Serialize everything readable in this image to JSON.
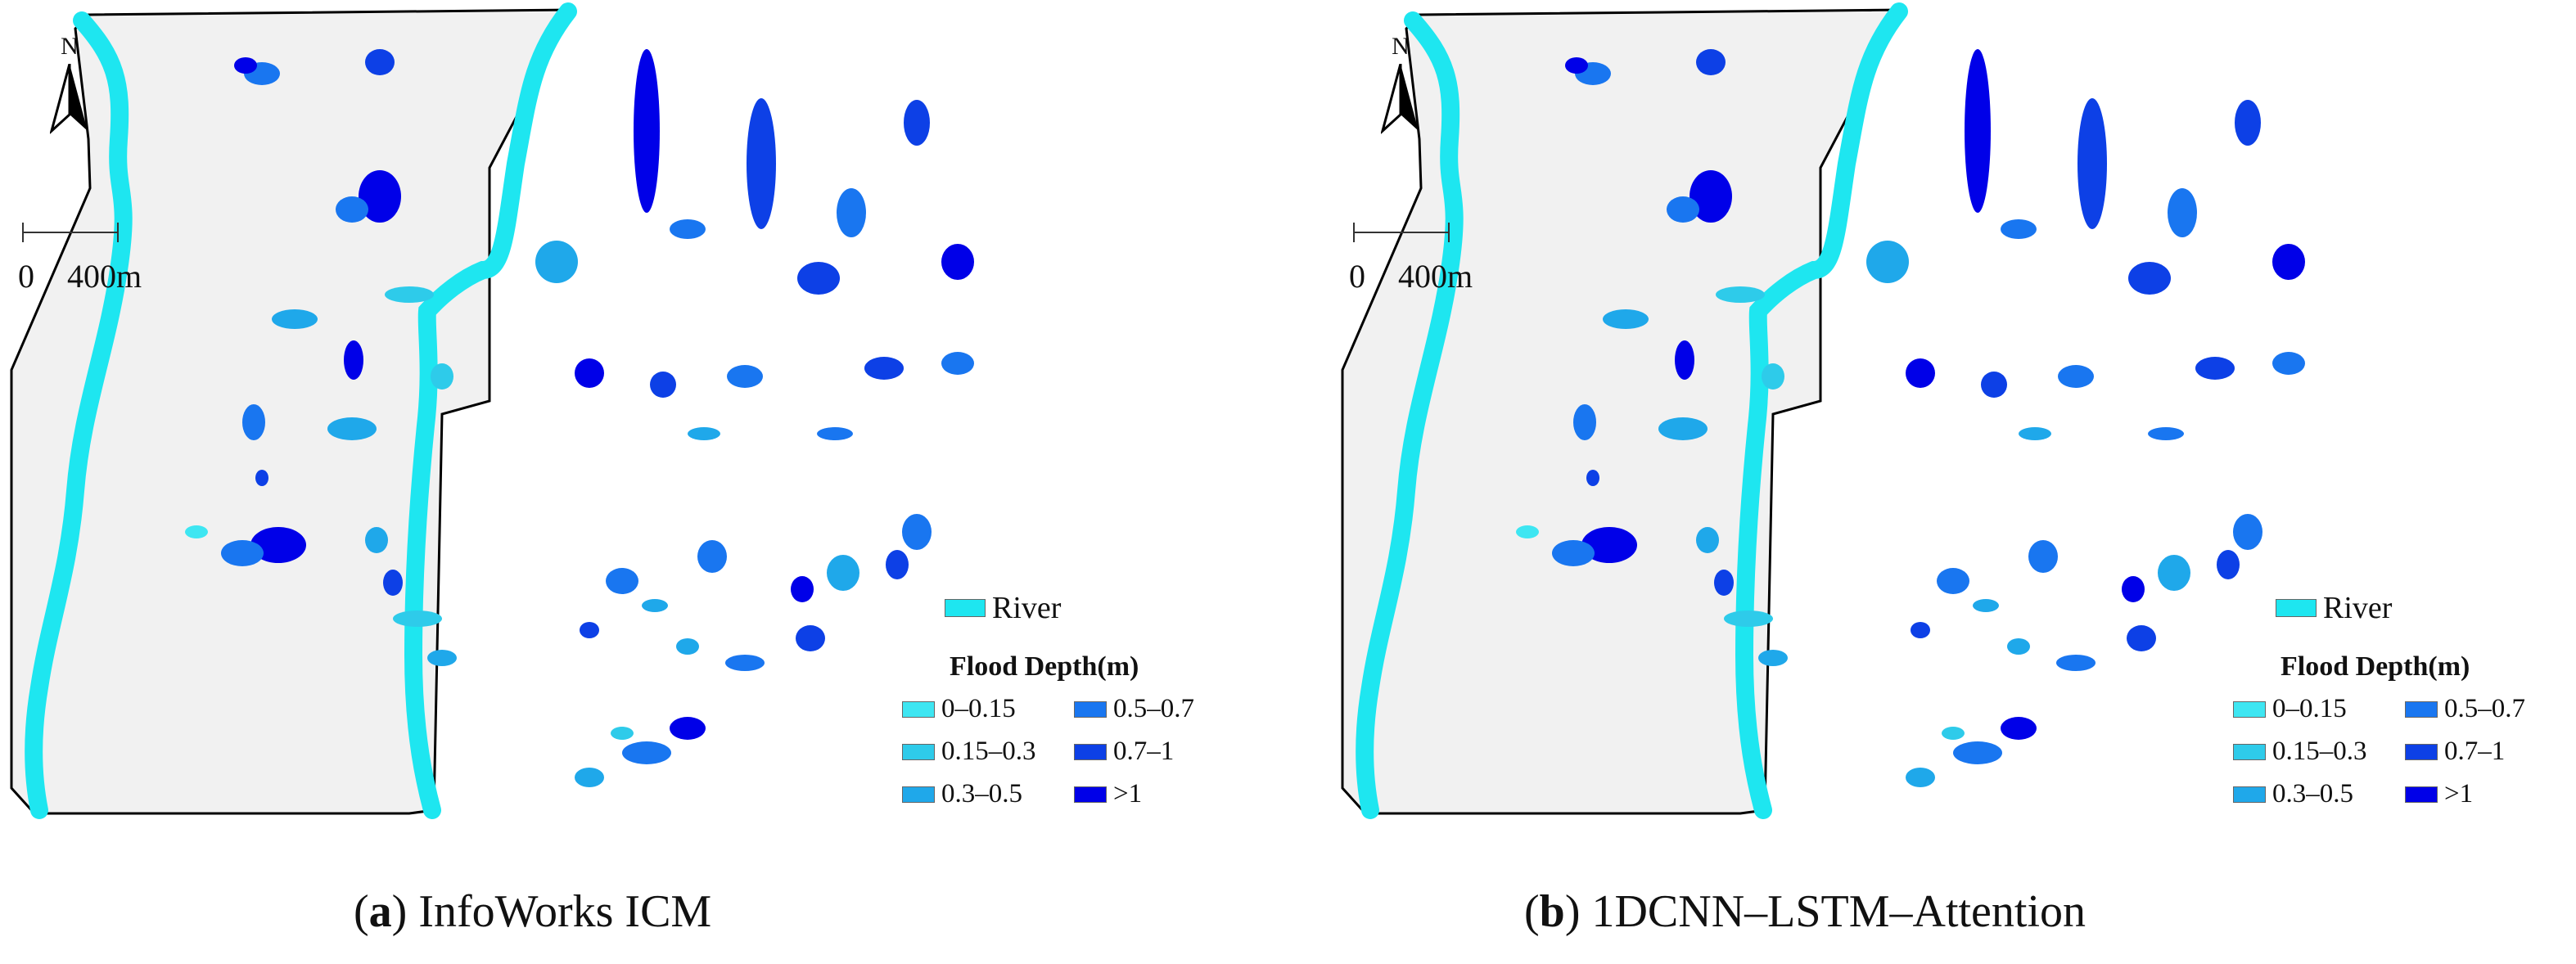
{
  "north_label": "N",
  "scale": {
    "zero": "0",
    "distance": "400m"
  },
  "legend": {
    "river_label": "River",
    "title": "Flood Depth(m)",
    "classes": [
      {
        "label": "0–0.15",
        "color": "#3ee6f2"
      },
      {
        "label": "0.15–0.3",
        "color": "#2ecbea"
      },
      {
        "label": "0.3–0.5",
        "color": "#1fa8ea"
      },
      {
        "label": "0.5–0.7",
        "color": "#1976f0"
      },
      {
        "label": "0.7–1",
        "color": "#0d40e6"
      },
      {
        "label": ">1",
        "color": "#0000e8"
      }
    ]
  },
  "colors": {
    "river": "#1ee6f0",
    "background": "#f1f1f1",
    "outline": "#000000"
  },
  "panels": [
    {
      "letter": "a",
      "title": "InfoWorks ICM"
    },
    {
      "letter": "b",
      "title": "1DCNN–LSTM–Attention"
    }
  ]
}
